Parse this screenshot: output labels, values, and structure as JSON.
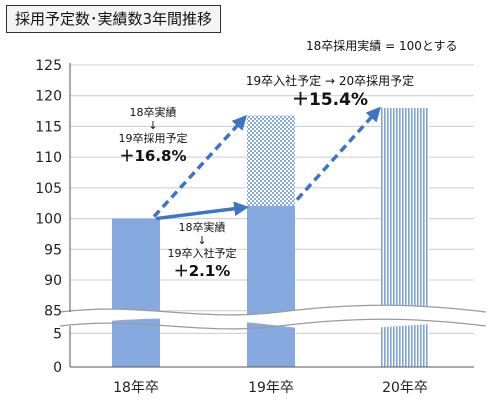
{
  "chart_data": {
    "type": "bar",
    "title": "採用予定数･実績数3年間推移",
    "subtitle": "18卒採用実績 = 100とする",
    "categories": [
      "18年卒",
      "19年卒",
      "20年卒"
    ],
    "series": [
      {
        "values": [
          100,
          102.1,
          null
        ]
      },
      {
        "values": [
          null,
          116.8,
          118
        ]
      }
    ],
    "y_ticks_lower": [
      0,
      5
    ],
    "y_ticks_upper": [
      85,
      90,
      95,
      100,
      105,
      110,
      115,
      120,
      125
    ],
    "ylim_lower": [
      0,
      7
    ],
    "ylim_upper": [
      83,
      125
    ],
    "axis_break": true,
    "grid": true,
    "annotations": {
      "a1": {
        "lines": [
          "18卒実績",
          "↓",
          "19卒採用予定"
        ],
        "pct": "＋16.8%"
      },
      "a2": {
        "lines": [
          "18卒実績",
          "↓",
          "19卒入社予定"
        ],
        "pct": "＋2.1%"
      },
      "a3": {
        "lines": [
          "19卒入社予定 → 20卒採用予定"
        ],
        "pct": "＋15.4%"
      }
    },
    "colors": {
      "bar_solid": "#86a9e0",
      "arrow": "#3d74c4",
      "hatch_blue": "#7fa3dc",
      "grid": "#cccccc",
      "axis": "#555555"
    }
  }
}
